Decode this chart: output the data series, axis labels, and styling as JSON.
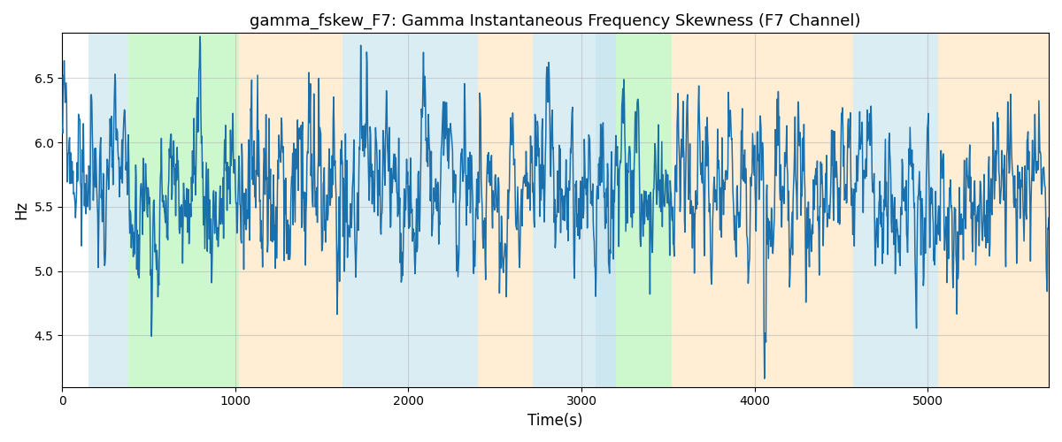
{
  "title": "gamma_fskew_F7: Gamma Instantaneous Frequency Skewness (F7 Channel)",
  "xlabel": "Time(s)",
  "ylabel": "Hz",
  "xlim": [
    0,
    5700
  ],
  "ylim": [
    4.1,
    6.85
  ],
  "line_color": "#1a6fad",
  "line_width": 1.1,
  "background_color": "#ffffff",
  "colored_bands": [
    {
      "xmin": 150,
      "xmax": 380,
      "color": "#add8e6",
      "alpha": 0.45
    },
    {
      "xmin": 380,
      "xmax": 1020,
      "color": "#90ee90",
      "alpha": 0.45
    },
    {
      "xmin": 1020,
      "xmax": 1620,
      "color": "#ffd8a0",
      "alpha": 0.45
    },
    {
      "xmin": 1620,
      "xmax": 2400,
      "color": "#add8e6",
      "alpha": 0.45
    },
    {
      "xmin": 2400,
      "xmax": 2720,
      "color": "#ffd8a0",
      "alpha": 0.45
    },
    {
      "xmin": 2720,
      "xmax": 3080,
      "color": "#add8e6",
      "alpha": 0.45
    },
    {
      "xmin": 3080,
      "xmax": 3200,
      "color": "#add8e6",
      "alpha": 0.6
    },
    {
      "xmin": 3200,
      "xmax": 3520,
      "color": "#90ee90",
      "alpha": 0.45
    },
    {
      "xmin": 3520,
      "xmax": 4570,
      "color": "#ffd8a0",
      "alpha": 0.45
    },
    {
      "xmin": 4570,
      "xmax": 5060,
      "color": "#add8e6",
      "alpha": 0.45
    },
    {
      "xmin": 5060,
      "xmax": 5700,
      "color": "#ffd8a0",
      "alpha": 0.45
    }
  ],
  "yticks": [
    4.5,
    5.0,
    5.5,
    6.0,
    6.5
  ],
  "xticks": [
    0,
    1000,
    2000,
    3000,
    4000,
    5000
  ],
  "grid_color": "#b0b0b0",
  "grid_alpha": 0.5,
  "grid_linewidth": 0.8,
  "title_fontsize": 13,
  "signal_seed": 99,
  "signal_n": 2000,
  "signal_mean": 5.62,
  "signal_ar": 0.75,
  "signal_sigma": 0.22
}
